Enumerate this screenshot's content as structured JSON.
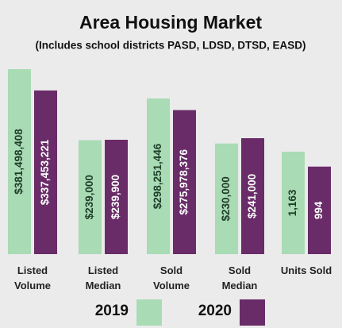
{
  "chart_data": {
    "type": "bar",
    "title": "Area Housing Market",
    "subtitle": "(Includes school districts PASD, LDSD, DTSD, EASD)",
    "categories": [
      "Listed Volume",
      "Listed Median",
      "Sold Volume",
      "Sold Median",
      "Units Sold"
    ],
    "series": [
      {
        "name": "2019",
        "color": "#a9dbb5",
        "values": [
          381498408,
          239000,
          298251446,
          230000,
          1163
        ],
        "value_labels": [
          "$381,498,408",
          "$239,000",
          "$298,251,446",
          "$230,000",
          "1,163"
        ]
      },
      {
        "name": "2020",
        "color": "#6a2c68",
        "values": [
          337453221,
          239900,
          275978376,
          241000,
          994
        ],
        "value_labels": [
          "$337,453,221",
          "$239,900",
          "$275,978,376",
          "$241,000",
          "994"
        ]
      }
    ]
  }
}
